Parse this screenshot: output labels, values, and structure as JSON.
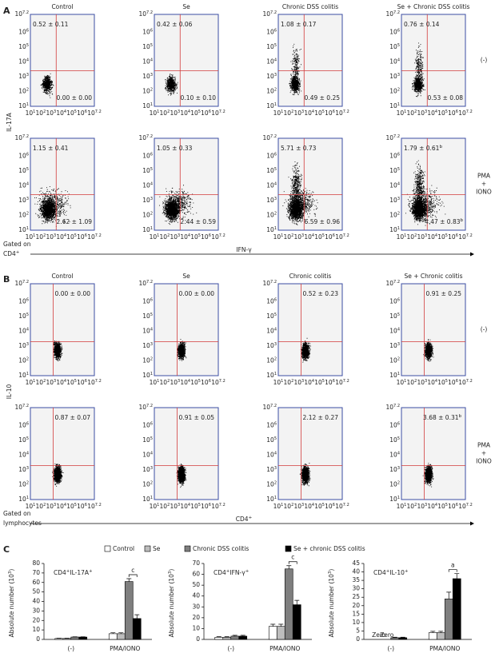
{
  "flow_axis": {
    "base": "10",
    "exponents": [
      "1",
      "2",
      "3",
      "4",
      "5",
      "6",
      "7.2"
    ]
  },
  "panel_a": {
    "label": "A",
    "y_axis_label": [
      {
        "text": "IL-17A"
      }
    ],
    "columns": [
      "Control",
      "Se",
      "Chronic DSS colitis",
      "Se + Chronic DSS colitis"
    ],
    "row_labels": [
      [
        "(-)"
      ],
      [
        "PMA",
        "+",
        "IONO"
      ]
    ],
    "quadrants": [
      [
        {
          "upper_left": [
            {
              "text": "0.52 ± 0.11"
            }
          ],
          "lower_right": [
            {
              "text": "0.00 ± 0.00"
            }
          ]
        },
        {
          "upper_left": [
            {
              "text": "0.42 ± 0.06"
            }
          ],
          "lower_right": [
            {
              "text": "0.10 ± 0.10"
            }
          ]
        },
        {
          "upper_left": [
            {
              "text": "1.08 ± 0.17"
            }
          ],
          "lower_right": [
            {
              "text": "0.49 ± 0.25"
            }
          ]
        },
        {
          "upper_left": [
            {
              "text": "0.76 ± 0.14"
            }
          ],
          "lower_right": [
            {
              "text": "0.53 ± 0.08"
            }
          ]
        }
      ],
      [
        {
          "upper_left": [
            {
              "text": "1.15 ± 0.41"
            }
          ],
          "lower_right": [
            {
              "text": "2.62 ± 1.09"
            }
          ]
        },
        {
          "upper_left": [
            {
              "text": "1.05 ± 0.33"
            }
          ],
          "lower_right": [
            {
              "text": "2.44 ± 0.59"
            }
          ]
        },
        {
          "upper_left": [
            {
              "text": "5.71 ± 0.73"
            }
          ],
          "lower_right": [
            {
              "text": "6.59 ± 0.96"
            }
          ]
        },
        {
          "upper_left": [
            {
              "text": "1.79 ± 0.61"
            },
            {
              "text": "b",
              "sup": true
            }
          ],
          "lower_right": [
            {
              "text": "4.47 ± 0.83"
            },
            {
              "text": "b",
              "sup": true
            }
          ]
        }
      ]
    ],
    "gate": [
      [
        {
          "text": "Gated on"
        }
      ],
      [
        {
          "text": "CD4"
        },
        {
          "text": "+",
          "sup": true
        }
      ]
    ],
    "x_axis_label": [
      {
        "text": "IFN-γ"
      }
    ]
  },
  "panel_b": {
    "label": "B",
    "y_axis_label": [
      {
        "text": "IL-10"
      }
    ],
    "columns": [
      "Control",
      "Se",
      "Chronic colitis",
      "Se + Chronic colitis"
    ],
    "row_labels": [
      [
        "(-)"
      ],
      [
        "PMA",
        "+",
        "IONO"
      ]
    ],
    "quadrants": [
      [
        {
          "upper_right": [
            {
              "text": "0.00 ± 0.00"
            }
          ]
        },
        {
          "upper_right": [
            {
              "text": "0.00 ± 0.00"
            }
          ]
        },
        {
          "upper_right": [
            {
              "text": "0.52 ± 0.23"
            }
          ]
        },
        {
          "upper_right": [
            {
              "text": "0.91 ± 0.25"
            }
          ]
        }
      ],
      [
        {
          "upper_right": [
            {
              "text": "0.87 ± 0.07"
            }
          ]
        },
        {
          "upper_right": [
            {
              "text": "0.91 ± 0.05"
            }
          ]
        },
        {
          "upper_right": [
            {
              "text": "2.12 ± 0.27"
            }
          ]
        },
        {
          "upper_right": [
            {
              "text": "3.68 ± 0.31"
            },
            {
              "text": "b",
              "sup": true
            }
          ]
        }
      ]
    ],
    "gate": [
      [
        {
          "text": "Gated on"
        }
      ],
      [
        {
          "text": "lymphocytes"
        }
      ]
    ],
    "x_axis_label": [
      {
        "text": "CD4"
      },
      {
        "text": "+",
        "sup": true
      }
    ]
  },
  "panel_c_label": "C",
  "chart_data": [
    {
      "type": "bar",
      "title": [
        {
          "text": "CD4"
        },
        {
          "text": "+",
          "sup": true
        },
        {
          "text": "IL-17A"
        },
        {
          "text": "+",
          "sup": true
        }
      ],
      "y_label": [
        {
          "text": "Absolute number (10"
        },
        {
          "text": "3",
          "sup": true
        },
        {
          "text": ")"
        }
      ],
      "categories": [
        "(-)",
        "PMA/IONO"
      ],
      "series": [
        {
          "name": "Control",
          "color": "#ffffff",
          "values": [
            1,
            6
          ],
          "errors": [
            0.3,
            1
          ]
        },
        {
          "name": "Se",
          "color": "#bdbdbd",
          "values": [
            1,
            6
          ],
          "errors": [
            0.3,
            1
          ]
        },
        {
          "name": "Chronic DSS colitis",
          "color": "#7f7f7f",
          "values": [
            2.5,
            61
          ],
          "errors": [
            0.3,
            3
          ]
        },
        {
          "name": "Se + chronic DSS colitis",
          "color": "#000000",
          "values": [
            2.5,
            22
          ],
          "errors": [
            0.3,
            4
          ]
        }
      ],
      "ylim": [
        0,
        80
      ],
      "yticks": [
        0,
        10,
        20,
        30,
        40,
        50,
        60,
        70,
        80
      ],
      "annotations": [
        {
          "text": "c"
        }
      ]
    },
    {
      "type": "bar",
      "title": [
        {
          "text": "CD4"
        },
        {
          "text": "+",
          "sup": true
        },
        {
          "text": "IFN-γ"
        },
        {
          "text": "+",
          "sup": true
        }
      ],
      "y_label": [
        {
          "text": "Absolute number (10"
        },
        {
          "text": "3",
          "sup": true
        },
        {
          "text": ")"
        }
      ],
      "categories": [
        "(-)",
        "PMA/IONO"
      ],
      "series": [
        {
          "values": [
            2,
            12
          ],
          "errors": [
            0.5,
            2
          ]
        },
        {
          "values": [
            2,
            12
          ],
          "errors": [
            0.5,
            2
          ]
        },
        {
          "values": [
            3,
            65
          ],
          "errors": [
            0.8,
            3
          ]
        },
        {
          "values": [
            3,
            32
          ],
          "errors": [
            0.8,
            4
          ]
        }
      ],
      "ylim": [
        0,
        70
      ],
      "yticks": [
        0,
        10,
        20,
        30,
        40,
        50,
        60,
        70
      ],
      "annotations": [
        {
          "text": "c"
        }
      ]
    },
    {
      "type": "bar",
      "title": [
        {
          "text": "CD4"
        },
        {
          "text": "+",
          "sup": true
        },
        {
          "text": "IL-10"
        },
        {
          "text": "+",
          "sup": true
        }
      ],
      "y_label": [
        {
          "text": "Absolute number (10"
        },
        {
          "text": "3",
          "sup": true
        },
        {
          "text": ")"
        }
      ],
      "categories": [
        "(-)",
        "PMA/IONO"
      ],
      "series": [
        {
          "values": [
            0,
            4
          ],
          "errors": [
            0,
            0.8
          ],
          "value_labels": [
            "Zero",
            null
          ]
        },
        {
          "values": [
            0,
            4
          ],
          "errors": [
            0,
            0.8
          ],
          "value_labels": [
            "Zero",
            null
          ]
        },
        {
          "values": [
            1,
            24
          ],
          "errors": [
            0.3,
            4
          ]
        },
        {
          "values": [
            1,
            36
          ],
          "errors": [
            0.3,
            3
          ]
        }
      ],
      "ylim": [
        0,
        45
      ],
      "yticks": [
        0,
        5,
        10,
        15,
        20,
        25,
        30,
        35,
        40,
        45
      ],
      "annotations": [
        {
          "text": "a"
        }
      ]
    }
  ]
}
